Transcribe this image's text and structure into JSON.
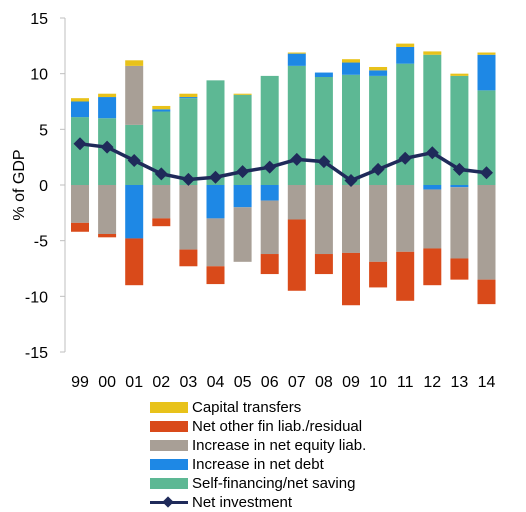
{
  "chart_data": {
    "type": "bar",
    "stacked": true,
    "ylabel": "% of GDP",
    "ylim": [
      -15,
      15
    ],
    "yticks": [
      -15,
      -10,
      -5,
      0,
      5,
      10,
      15
    ],
    "categories": [
      "99",
      "00",
      "01",
      "02",
      "03",
      "04",
      "05",
      "06",
      "07",
      "08",
      "09",
      "10",
      "11",
      "12",
      "13",
      "14"
    ],
    "series": [
      {
        "name": "Capital transfers",
        "color": "#e8c21a",
        "values": [
          0.3,
          0.3,
          0.5,
          0.3,
          0.3,
          0,
          0.1,
          0,
          0.1,
          0,
          0.3,
          0.3,
          0.3,
          0.3,
          0.2,
          0.2
        ]
      },
      {
        "name": "Net other fin liab./residual",
        "color": "#d94a1a",
        "values": [
          -0.8,
          -0.3,
          -4.2,
          -0.7,
          -1.5,
          -1.6,
          0,
          -1.8,
          -6.4,
          -1.8,
          -4.7,
          -2.3,
          -4.4,
          -3.3,
          -1.9,
          -2.2
        ]
      },
      {
        "name": "Increase in net equity liab.",
        "color": "#a89f96",
        "values": [
          -3.4,
          -4.4,
          5.3,
          -3.0,
          -5.8,
          -4.3,
          -4.9,
          -4.8,
          -3.1,
          -6.2,
          -6.1,
          -6.9,
          -6.0,
          -5.3,
          -6.4,
          -8.5
        ]
      },
      {
        "name": "Increase in net debt",
        "color": "#1e88e5",
        "values": [
          1.4,
          1.9,
          -4.8,
          0.2,
          0.1,
          -3.0,
          -2.0,
          -1.4,
          1.1,
          0.4,
          1.1,
          0.5,
          1.5,
          -0.4,
          -0.2,
          3.2
        ]
      },
      {
        "name": "Self-financing/net saving",
        "color": "#5db894",
        "values": [
          6.1,
          6.0,
          5.4,
          6.6,
          7.8,
          9.4,
          8.1,
          9.8,
          10.7,
          9.7,
          9.9,
          9.8,
          10.9,
          11.7,
          9.8,
          8.5
        ]
      },
      {
        "name": "Net investment",
        "color": "#1f2a5a",
        "kind": "line",
        "values": [
          3.7,
          3.4,
          2.2,
          1.0,
          0.5,
          0.7,
          1.2,
          1.6,
          2.3,
          2.1,
          0.4,
          1.4,
          2.4,
          2.9,
          1.4,
          1.1
        ]
      }
    ],
    "legend_order": [
      "Capital transfers",
      "Net other fin liab./residual",
      "Increase in net equity liab.",
      "Increase in net debt",
      "Self-financing/net saving",
      "Net investment"
    ],
    "stack_order": [
      "Self-financing/net saving",
      "Increase in net debt",
      "Increase in net equity liab.",
      "Net other fin liab./residual",
      "Capital transfers"
    ],
    "grid": false,
    "legend_position": "bottom"
  }
}
